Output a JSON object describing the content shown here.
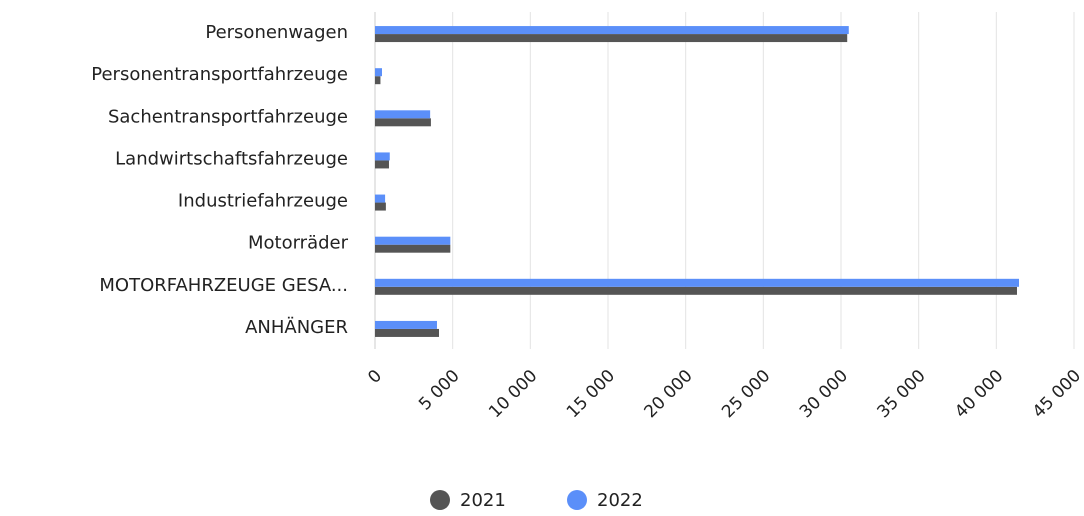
{
  "chart_data": {
    "type": "bar",
    "orientation": "horizontal",
    "categories": [
      "Personenwagen",
      "Personentransportfahrzeuge",
      "Sachentransportfahrzeuge",
      "Landwirtschaftsfahrzeuge",
      "Industriefahrzeuge",
      "Motorräder",
      "MOTORFAHRZEUGE GESA...",
      "ANHÄNGER"
    ],
    "series": [
      {
        "name": "2021",
        "color": "#555555",
        "values": [
          30400,
          350,
          3600,
          900,
          700,
          4850,
          41330,
          4120
        ]
      },
      {
        "name": "2022",
        "color": "#5b8ff9",
        "values": [
          30500,
          450,
          3550,
          950,
          650,
          4850,
          41460,
          3990
        ]
      }
    ],
    "xlim": [
      0,
      45000
    ],
    "xticks": [
      0,
      {
        "value": 5000,
        "label": "5 000"
      },
      {
        "value": 10000,
        "label": "10 000"
      },
      {
        "value": 15000,
        "label": "15 000"
      },
      {
        "value": 20000,
        "label": "20 000"
      },
      {
        "value": 25000,
        "label": "25 000"
      },
      {
        "value": 30000,
        "label": "30 000"
      },
      {
        "value": 35000,
        "label": "35 000"
      },
      {
        "value": 40000,
        "label": "40 000"
      },
      {
        "value": 45000,
        "label": "45 000"
      }
    ],
    "grid": true,
    "legend": "bottom"
  }
}
